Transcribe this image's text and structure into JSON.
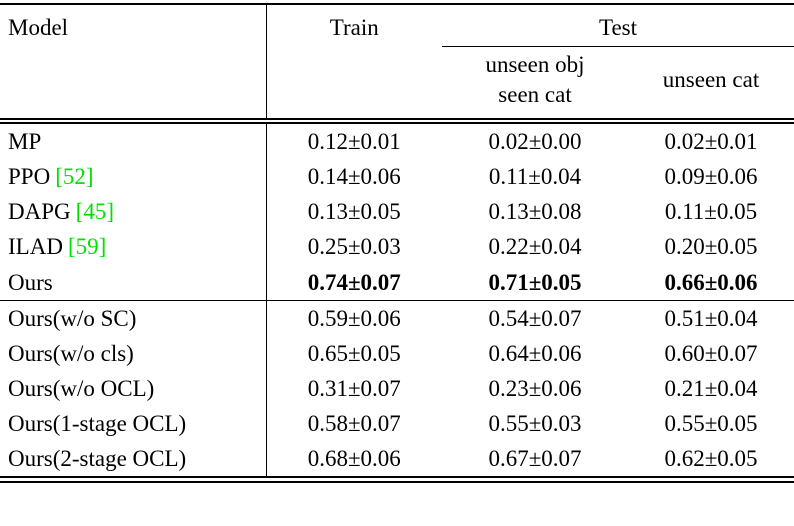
{
  "colors": {
    "citation_green": "#00E100",
    "text": "#000000",
    "background": "#ffffff"
  },
  "table": {
    "header": {
      "model": "Model",
      "train": "Train",
      "test": "Test",
      "test_sub_obj_line1": "unseen obj",
      "test_sub_obj_line2": "seen cat",
      "test_sub_cat": "unseen cat"
    },
    "rows": [
      {
        "model": "MP",
        "cite": "",
        "train": "0.12±0.01",
        "test_unseen_obj": "0.02±0.00",
        "test_unseen_cat": "0.02±0.01"
      },
      {
        "model": "PPO",
        "cite": "[52]",
        "train": "0.14±0.06",
        "test_unseen_obj": "0.11±0.04",
        "test_unseen_cat": "0.09±0.06"
      },
      {
        "model": "DAPG",
        "cite": "[45]",
        "train": "0.13±0.05",
        "test_unseen_obj": "0.13±0.08",
        "test_unseen_cat": "0.11±0.05"
      },
      {
        "model": "ILAD",
        "cite": "[59]",
        "train": "0.25±0.03",
        "test_unseen_obj": "0.22±0.04",
        "test_unseen_cat": "0.20±0.05"
      },
      {
        "model": "Ours",
        "cite": "",
        "train": "0.74±0.07",
        "test_unseen_obj": "0.71±0.05",
        "test_unseen_cat": "0.66±0.06",
        "bold": true
      },
      {
        "model": "Ours(w/o SC)",
        "cite": "",
        "train": "0.59±0.06",
        "test_unseen_obj": "0.54±0.07",
        "test_unseen_cat": "0.51±0.04"
      },
      {
        "model": "Ours(w/o cls)",
        "cite": "",
        "train": "0.65±0.05",
        "test_unseen_obj": "0.64±0.06",
        "test_unseen_cat": "0.60±0.07"
      },
      {
        "model": "Ours(w/o OCL)",
        "cite": "",
        "train": "0.31±0.07",
        "test_unseen_obj": "0.23±0.06",
        "test_unseen_cat": "0.21±0.04"
      },
      {
        "model": "Ours(1-stage OCL)",
        "cite": "",
        "train": "0.58±0.07",
        "test_unseen_obj": "0.55±0.03",
        "test_unseen_cat": "0.55±0.05"
      },
      {
        "model": "Ours(2-stage OCL)",
        "cite": "",
        "train": "0.68±0.06",
        "test_unseen_obj": "0.67±0.07",
        "test_unseen_cat": "0.62±0.05"
      }
    ]
  }
}
